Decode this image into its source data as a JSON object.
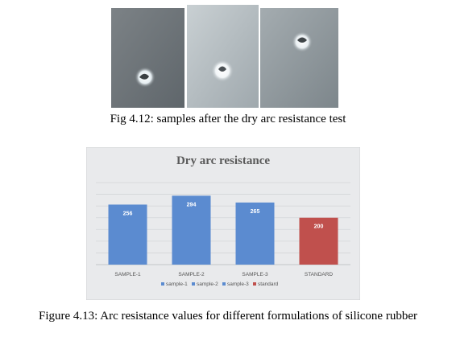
{
  "figures": {
    "photos": [
      {
        "name": "sample-1-photo"
      },
      {
        "name": "sample-2-photo"
      },
      {
        "name": "sample-3-photo"
      }
    ],
    "caption_1": "Fig 4.12: samples after the dry arc resistance test",
    "caption_2": "Figure 4.13: Arc resistance values for different formulations of silicone rubber"
  },
  "chart_data": {
    "type": "bar",
    "title": "Dry arc resistance",
    "categories": [
      "SAMPLE-1",
      "SAMPLE-2",
      "SAMPLE-3",
      "STANDARD"
    ],
    "series": [
      {
        "name": "sample-1",
        "values": [
          256,
          null,
          null,
          null
        ],
        "color": "#5b8bd0"
      },
      {
        "name": "sample-2",
        "values": [
          null,
          294,
          null,
          null
        ],
        "color": "#5b8bd0"
      },
      {
        "name": "sample-3",
        "values": [
          null,
          null,
          265,
          null
        ],
        "color": "#5b8bd0"
      },
      {
        "name": "standard",
        "values": [
          null,
          null,
          null,
          200
        ],
        "color": "#c0504d"
      }
    ],
    "values": [
      256,
      294,
      265,
      200
    ],
    "ylim": [
      0,
      350
    ],
    "grid": true,
    "legend": "bottom",
    "background": "#e9eaec"
  }
}
